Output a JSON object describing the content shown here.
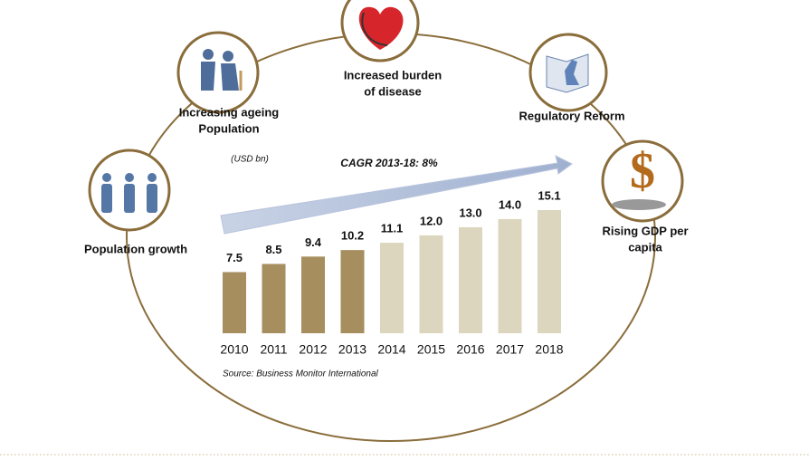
{
  "chart_data": {
    "type": "bar",
    "unit_label": "(USD bn)",
    "annotation": "CAGR 2013-18: 8%",
    "source": "Source: Business Monitor International",
    "categories": [
      "2010",
      "2011",
      "2012",
      "2013",
      "2014",
      "2015",
      "2016",
      "2017",
      "2018"
    ],
    "values": [
      7.5,
      8.5,
      9.4,
      10.2,
      11.1,
      12.0,
      13.0,
      14.0,
      15.1
    ],
    "value_labels": [
      "7.5",
      "8.5",
      "9.4",
      "10.2",
      "11.1",
      "12.0",
      "13.0",
      "14.0",
      "15.1"
    ],
    "colors": [
      "#a68e5e",
      "#a68e5e",
      "#a68e5e",
      "#a68e5e",
      "#dcd6bf",
      "#dcd6bf",
      "#dcd6bf",
      "#dcd6bf",
      "#dcd6bf"
    ],
    "drivers": [
      {
        "lines": [
          "Population growth"
        ]
      },
      {
        "lines": [
          "Increasing ageing",
          "Population"
        ]
      },
      {
        "lines": [
          "Increased burden",
          "of disease"
        ]
      },
      {
        "lines": [
          "Regulatory Reform"
        ]
      },
      {
        "lines": [
          "Rising GDP per",
          "capita"
        ]
      }
    ]
  }
}
